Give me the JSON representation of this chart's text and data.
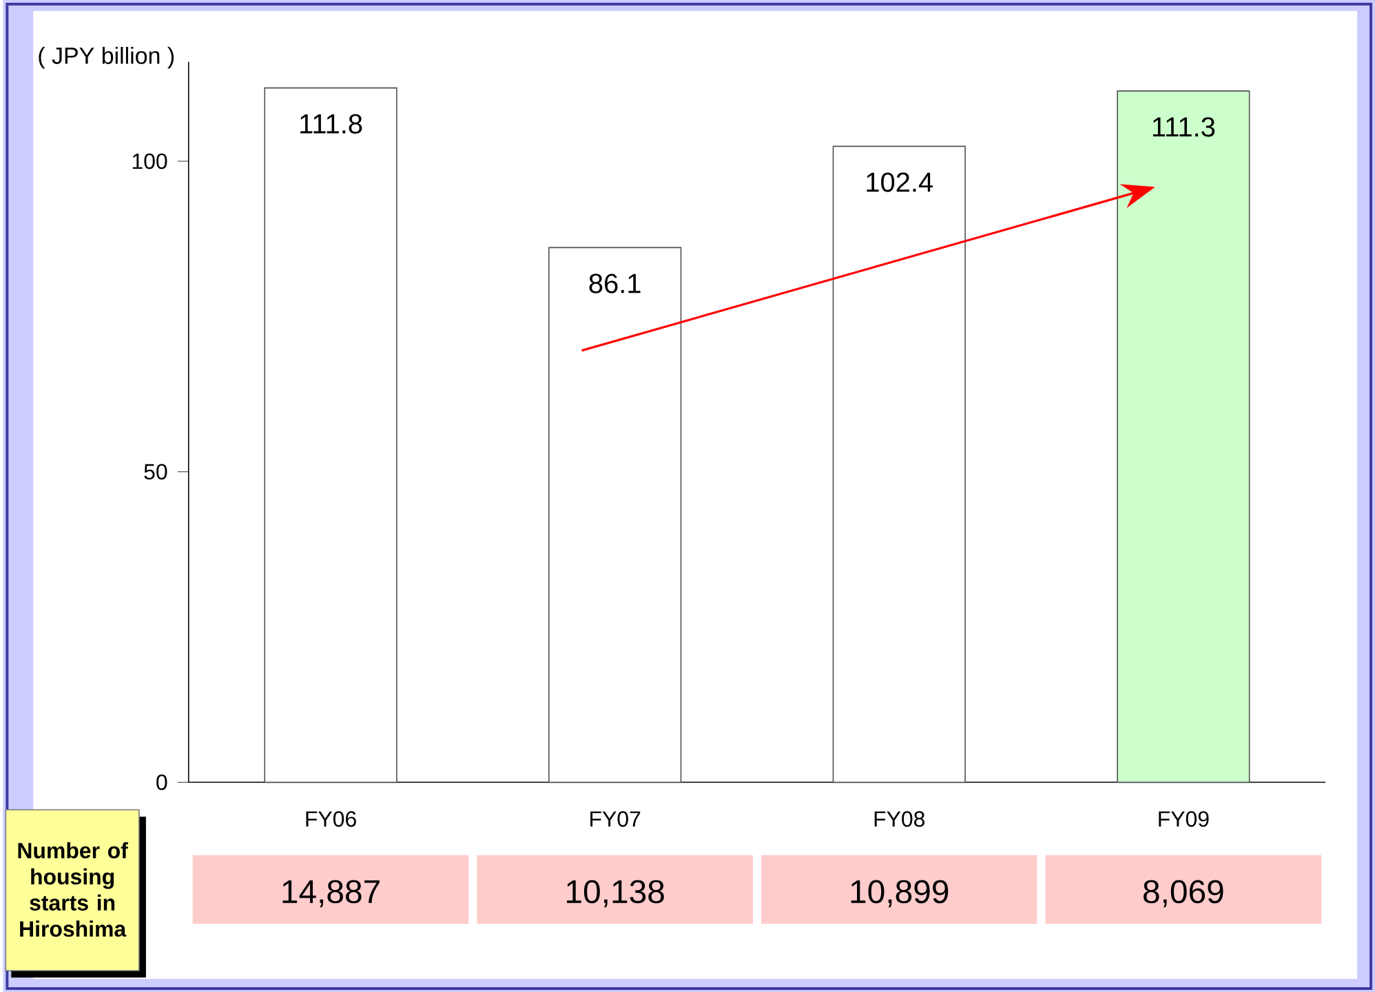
{
  "chart_data": {
    "type": "bar",
    "ylabel": "( JPY billion )",
    "categories": [
      "FY06",
      "FY07",
      "FY08",
      "FY09"
    ],
    "values": [
      111.8,
      86.1,
      102.4,
      111.3
    ],
    "colors": [
      "#ffffff",
      "#ffffff",
      "#ffffff",
      "#ccffcc"
    ],
    "ylim": [
      0,
      116
    ],
    "yticks": [
      0,
      50,
      100
    ],
    "data_labels": true,
    "annotations": [
      "Number of housing starts in Hiroshima",
      "14,887",
      "10,138",
      "10,899",
      "8,069"
    ]
  }
}
